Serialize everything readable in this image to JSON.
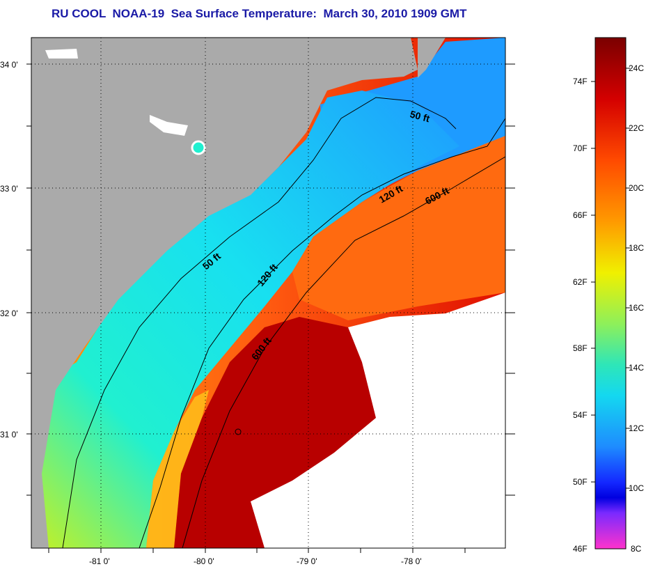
{
  "title": "RU COOL  NOAA-19  Sea Surface Temperature:  March 30, 2010 1909 GMT",
  "lat_ticks": [
    "34 0'",
    "33 0'",
    "32 0'",
    "31 0'"
  ],
  "lon_ticks": [
    "-81 0'",
    "-80 0'",
    "-79 0'",
    "-78 0'"
  ],
  "contours": {
    "label_50_north": "50 ft",
    "label_120_north": "120 ft",
    "label_600_north": "600 ft",
    "label_50_south": "50 ft",
    "label_120_south": "120 ft",
    "label_600_south": "600 ft"
  },
  "colorbar": {
    "fahrenheit": [
      "74F",
      "70F",
      "66F",
      "62F",
      "58F",
      "54F",
      "50F",
      "46F"
    ],
    "celsius": [
      "24C",
      "22C",
      "20C",
      "18C",
      "16C",
      "14C",
      "12C",
      "10C",
      "8C"
    ]
  },
  "colors": {
    "land": "#aaaaaa",
    "title": "#1a1aa6",
    "cold": "#1e9bff",
    "shelf": "#18e0f0",
    "warm": "#ff3a0a",
    "gulfstream": "#b80000",
    "cloud": "#ffffff"
  }
}
